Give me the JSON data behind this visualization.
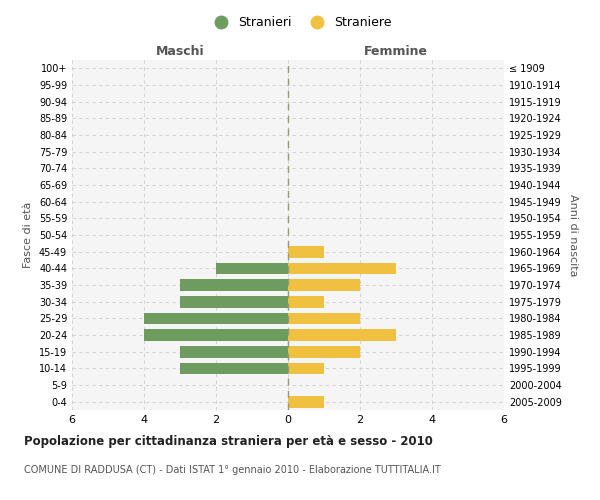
{
  "age_groups": [
    "0-4",
    "5-9",
    "10-14",
    "15-19",
    "20-24",
    "25-29",
    "30-34",
    "35-39",
    "40-44",
    "45-49",
    "50-54",
    "55-59",
    "60-64",
    "65-69",
    "70-74",
    "75-79",
    "80-84",
    "85-89",
    "90-94",
    "95-99",
    "100+"
  ],
  "birth_years": [
    "2005-2009",
    "2000-2004",
    "1995-1999",
    "1990-1994",
    "1985-1989",
    "1980-1984",
    "1975-1979",
    "1970-1974",
    "1965-1969",
    "1960-1964",
    "1955-1959",
    "1950-1954",
    "1945-1949",
    "1940-1944",
    "1935-1939",
    "1930-1934",
    "1925-1929",
    "1920-1924",
    "1915-1919",
    "1910-1914",
    "≤ 1909"
  ],
  "maschi": [
    0,
    0,
    3,
    3,
    4,
    4,
    3,
    3,
    2,
    0,
    0,
    0,
    0,
    0,
    0,
    0,
    0,
    0,
    0,
    0,
    0
  ],
  "femmine": [
    1,
    0,
    1,
    2,
    3,
    2,
    1,
    2,
    3,
    1,
    0,
    0,
    0,
    0,
    0,
    0,
    0,
    0,
    0,
    0,
    0
  ],
  "color_maschi": "#6e9b5e",
  "color_femmine": "#f0c040",
  "xlabel_left": "Maschi",
  "xlabel_right": "Femmine",
  "ylabel_left": "Fasce di età",
  "ylabel_right": "Anni di nascita",
  "title": "Popolazione per cittadinanza straniera per età e sesso - 2010",
  "subtitle": "COMUNE DI RADDUSA (CT) - Dati ISTAT 1° gennaio 2010 - Elaborazione TUTTITALIA.IT",
  "legend_maschi": "Stranieri",
  "legend_femmine": "Straniere",
  "xlim": 6,
  "grid_color": "#cccccc",
  "bg_color": "#ffffff",
  "plot_bg_color": "#f5f5f5"
}
